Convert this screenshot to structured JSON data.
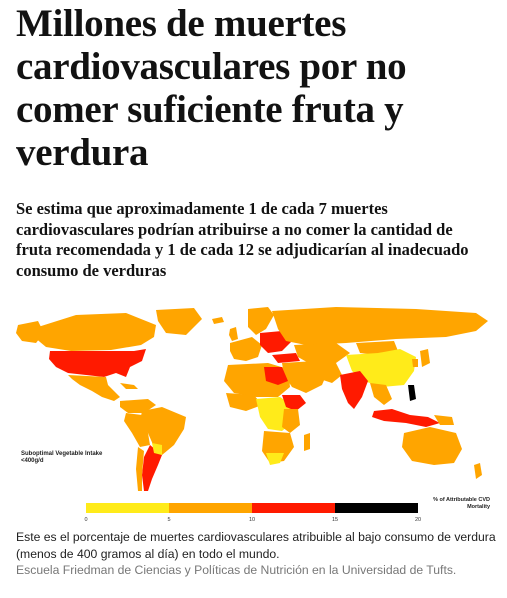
{
  "article": {
    "headline": "Millones de muertes cardiovasculares por no comer suficiente fruta y verdura",
    "subheadline": "Se estima que aproximadamente 1 de cada 7 muertes cardiovasculares podrían atribuirse a no comer la cantidad de fruta recomendada y 1 de cada 12 se adjudicarían al inadecuado consumo de verduras",
    "caption": "Este es el porcentaje de muertes cardiovasculares atribuible al bajo consumo de verdura (menos de 400 gramos al día) en todo el mundo.",
    "credit": "Escuela Friedman de Ciencias y Políticas de Nutrición en la Universidad de Tufts."
  },
  "map": {
    "label": "Suboptimal Vegetable Intake <400g/d",
    "legend_title": "% of Attributable CVD Mortality",
    "legend_ticks": [
      "0",
      "5",
      "10",
      "15",
      "20"
    ],
    "legend_colors": [
      "#ffeb1a",
      "#ffa500",
      "#ff1a00",
      "#000000"
    ],
    "ocean_color": "#ffffff",
    "no_data_color": "#d9d9d9"
  }
}
